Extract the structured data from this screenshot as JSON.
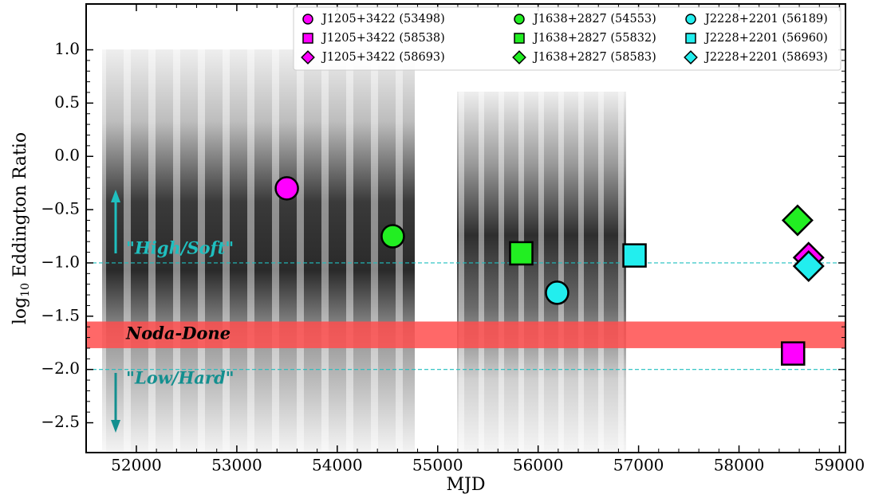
{
  "chart_data": {
    "type": "scatter",
    "xlabel": "MJD",
    "ylabel": [
      "log",
      "10",
      " Eddington Ratio"
    ],
    "xlim": [
      51500,
      59060
    ],
    "ylim": [
      -2.78,
      1.43
    ],
    "xticks": [
      52000,
      53000,
      54000,
      55000,
      56000,
      57000,
      58000,
      59000
    ],
    "yticks": [
      {
        "value": -2.5,
        "label": "−2.5"
      },
      {
        "value": -2.0,
        "label": "−2.0"
      },
      {
        "value": -1.5,
        "label": "−1.5"
      },
      {
        "value": -1.0,
        "label": "−1.0"
      },
      {
        "value": -0.5,
        "label": "−0.5"
      },
      {
        "value": 0.0,
        "label": "0.0"
      },
      {
        "value": 0.5,
        "label": "0.5"
      },
      {
        "value": 1.0,
        "label": "1.0"
      }
    ],
    "hlines": [
      -1.0,
      -2.0
    ],
    "band": {
      "range": [
        -1.8,
        -1.55
      ],
      "label": "Noda-Done",
      "color": "#ff4d4d"
    },
    "annotations": [
      "\"High/Soft\"",
      "\"Low/Hard\""
    ],
    "legend": "upper right",
    "series": [
      {
        "name": "J1205+3422 (53498)",
        "color": "#ff00ff",
        "marker": "circle",
        "x": [
          53498
        ],
        "values": [
          -0.3
        ]
      },
      {
        "name": "J1205+3422 (58538)",
        "color": "#ff00ff",
        "marker": "square",
        "x": [
          58538
        ],
        "values": [
          -1.85
        ]
      },
      {
        "name": "J1205+3422 (58693)",
        "color": "#ff00ff",
        "marker": "diamond",
        "x": [
          58693
        ],
        "values": [
          -0.95
        ]
      },
      {
        "name": "J1638+2827 (54553)",
        "color": "#22ee22",
        "marker": "circle",
        "x": [
          54553
        ],
        "values": [
          -0.75
        ]
      },
      {
        "name": "J1638+2827 (55832)",
        "color": "#22ee22",
        "marker": "square",
        "x": [
          55832
        ],
        "values": [
          -0.91
        ]
      },
      {
        "name": "J1638+2827 (58583)",
        "color": "#22ee22",
        "marker": "diamond",
        "x": [
          58583
        ],
        "values": [
          -0.6
        ]
      },
      {
        "name": "J2228+2201 (56189)",
        "color": "#22eeee",
        "marker": "circle",
        "x": [
          56189
        ],
        "values": [
          -1.28
        ]
      },
      {
        "name": "J2228+2201 (56960)",
        "color": "#22eeee",
        "marker": "square",
        "x": [
          56960
        ],
        "values": [
          -0.93
        ]
      },
      {
        "name": "J2228+2201 (58693)",
        "color": "#22eeee",
        "marker": "diamond",
        "x": [
          58693
        ],
        "values": [
          -1.03
        ]
      }
    ]
  }
}
